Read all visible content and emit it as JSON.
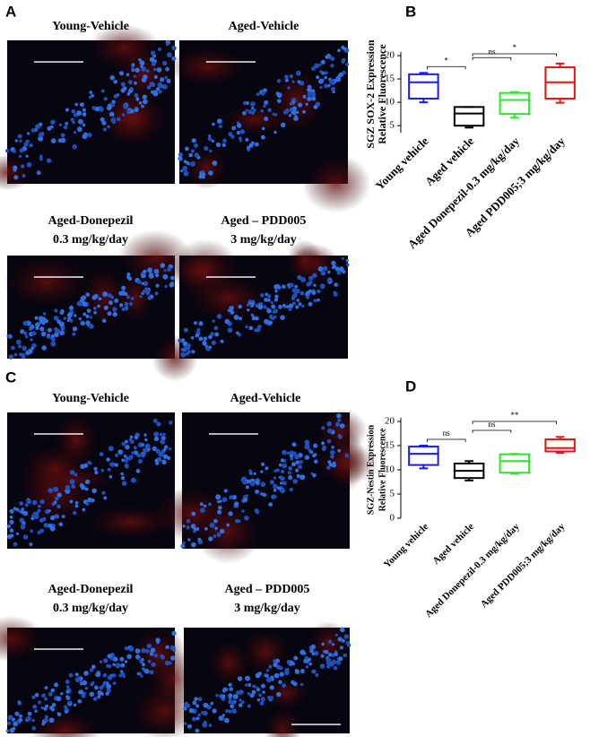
{
  "figure": {
    "panel_labels": [
      "A",
      "B",
      "C",
      "D"
    ],
    "image_titles": [
      [
        "Young-Vehicle"
      ],
      [
        "Aged-Vehicle"
      ],
      [
        "Aged-Donepezil",
        "0.3 mg/kg/day"
      ],
      [
        "Aged – PDD005",
        "3 mg/kg/day"
      ],
      [
        "Young-Vehicle"
      ],
      [
        "Aged-Vehicle"
      ],
      [
        "Aged-Donepezil",
        "0.3 mg/kg/day"
      ],
      [
        "Aged – PDD005",
        "3 mg/kg/day"
      ]
    ]
  },
  "chart_data": [
    {
      "type": "box",
      "ylabel": [
        "SGZ SOX-2 Expression",
        "Relative Fluorescence"
      ],
      "categories": [
        "Young vehicle",
        "Aged vehicle",
        "Aged Donepezil-0.3 mg/kg/day",
        "Aged PDD005;3 mg/kg/day"
      ],
      "colors": [
        "#1a1aff",
        "#000000",
        "#22ee22",
        "#ee1111"
      ],
      "boxes": [
        {
          "min": 10,
          "q1": 10.8,
          "median": 14.3,
          "q3": 16,
          "max": 16.3
        },
        {
          "min": 4.6,
          "q1": 5,
          "median": 7.6,
          "q3": 9,
          "max": 9
        },
        {
          "min": 6.7,
          "q1": 7.5,
          "median": 10.5,
          "q3": 12,
          "max": 12.2
        },
        {
          "min": 9.9,
          "q1": 10.8,
          "median": 14.3,
          "q3": 17.5,
          "max": 18.3
        }
      ],
      "ylim": [
        3.5,
        20
      ],
      "yticks": [
        5,
        10,
        15,
        20
      ],
      "annotations": [
        {
          "text": "*",
          "between": [
            "Young vehicle",
            "Aged vehicle"
          ]
        },
        {
          "text": "ns",
          "between": [
            "Aged vehicle",
            "Aged Donepezil-0.3 mg/kg/day"
          ]
        },
        {
          "text": "*",
          "between": [
            "Aged vehicle",
            "Aged PDD005;3 mg/kg/day"
          ]
        }
      ]
    },
    {
      "type": "box",
      "ylabel": [
        "SGZ-Nestin Expression",
        "Relative Fluorescence"
      ],
      "categories": [
        "Young vehicle",
        "Aged vehicle",
        "Aged Donepezil-0.3 mg/kg/day",
        "Aged PDD005;3 mg/kg/day"
      ],
      "colors": [
        "#1a1aff",
        "#000000",
        "#22ee22",
        "#ee1111"
      ],
      "boxes": [
        {
          "min": 10.3,
          "q1": 11,
          "median": 13.3,
          "q3": 14.8,
          "max": 15
        },
        {
          "min": 7.8,
          "q1": 8.3,
          "median": 9.8,
          "q3": 11.3,
          "max": 11.8
        },
        {
          "min": 9.2,
          "q1": 9.4,
          "median": 11.8,
          "q3": 13.2,
          "max": 13.3
        },
        {
          "min": 13.5,
          "q1": 13.8,
          "median": 14.5,
          "q3": 16.3,
          "max": 16.8
        }
      ],
      "ylim": [
        0,
        20
      ],
      "yticks": [
        0,
        5,
        10,
        15,
        20
      ],
      "annotations": [
        {
          "text": "ns",
          "between": [
            "Young vehicle",
            "Aged vehicle"
          ]
        },
        {
          "text": "ns",
          "between": [
            "Aged vehicle",
            "Aged Donepezil-0.3 mg/kg/day"
          ]
        },
        {
          "text": "**",
          "between": [
            "Aged vehicle",
            "Aged PDD005;3 mg/kg/day"
          ]
        }
      ]
    }
  ]
}
